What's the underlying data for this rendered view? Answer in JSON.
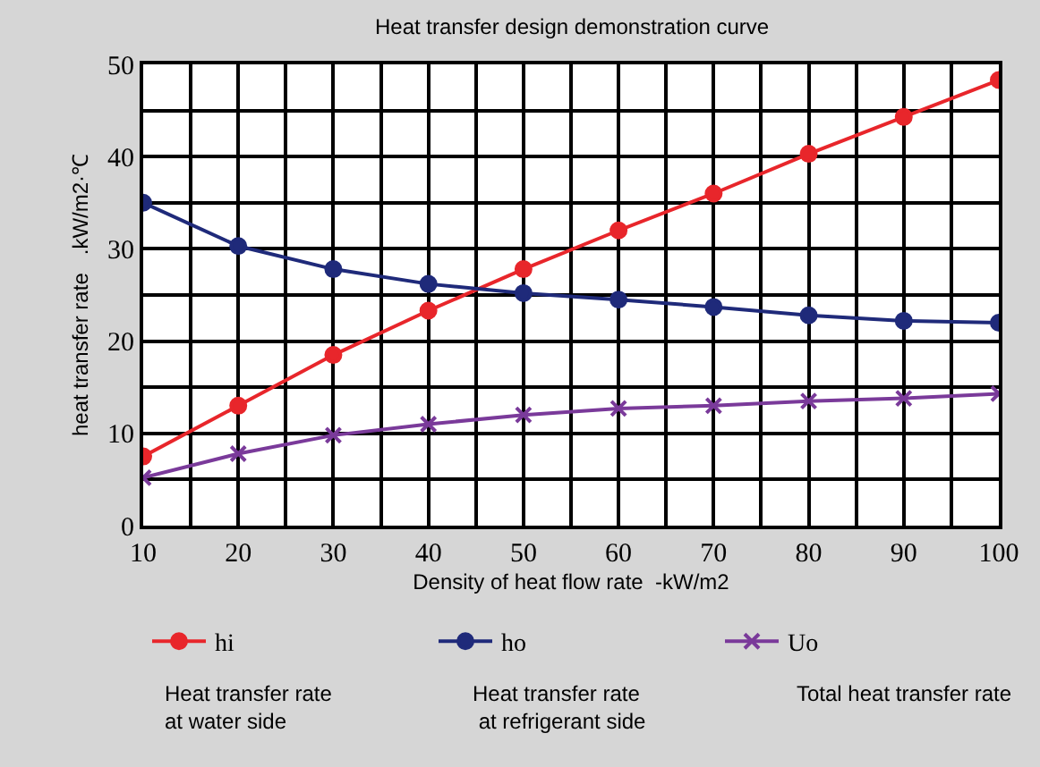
{
  "chart_data": {
    "type": "line",
    "title": "Heat transfer design demonstration curve",
    "xlabel": "Density of heat flow rate  -kW/m2",
    "ylabel": "heat transfer rate   .kW/m2·℃",
    "x": [
      10,
      20,
      30,
      40,
      50,
      60,
      70,
      80,
      90,
      100
    ],
    "xlim": [
      10,
      100
    ],
    "xticks": [
      10,
      {
        "value": 15,
        "label": null
      },
      20,
      {
        "value": 25,
        "label": null
      },
      30,
      {
        "value": 35,
        "label": null
      },
      40,
      {
        "value": 45,
        "label": null
      },
      50,
      {
        "value": 55,
        "label": null
      },
      60,
      {
        "value": 65,
        "label": null
      },
      70,
      {
        "value": 75,
        "label": null
      },
      80,
      {
        "value": 85,
        "label": null
      },
      90,
      {
        "value": 95,
        "label": null
      },
      100
    ],
    "ylim": [
      0,
      50
    ],
    "yticks": [
      0,
      {
        "value": 5,
        "label": null
      },
      10,
      {
        "value": 15,
        "label": null
      },
      20,
      {
        "value": 25,
        "label": null
      },
      30,
      {
        "value": 35,
        "label": null
      },
      40,
      {
        "value": 45,
        "label": null
      },
      50
    ],
    "grid": true,
    "legend": "bottom",
    "line_style": "solid",
    "series": [
      {
        "name": "hi",
        "color": "#e8262b",
        "marker": "circle",
        "values": [
          7.5,
          13,
          18.5,
          23.3,
          27.8,
          32,
          36,
          40.3,
          44.3,
          48.3
        ]
      },
      {
        "name": "ho",
        "color": "#1f2a7a",
        "marker": "circle",
        "values": [
          35,
          30.3,
          27.8,
          26.2,
          25.2,
          24.5,
          23.7,
          22.8,
          22.2,
          22
        ]
      },
      {
        "name": "Uo",
        "color": "#7a3a9a",
        "marker": "cross",
        "values": [
          5.2,
          7.8,
          9.8,
          11,
          12,
          12.7,
          13,
          13.5,
          13.8,
          14.3
        ]
      }
    ],
    "annotations": [
      "Heat transfer rate\nat water side",
      "Heat transfer rate\n at refrigerant side",
      "Total heat transfer rate"
    ]
  }
}
